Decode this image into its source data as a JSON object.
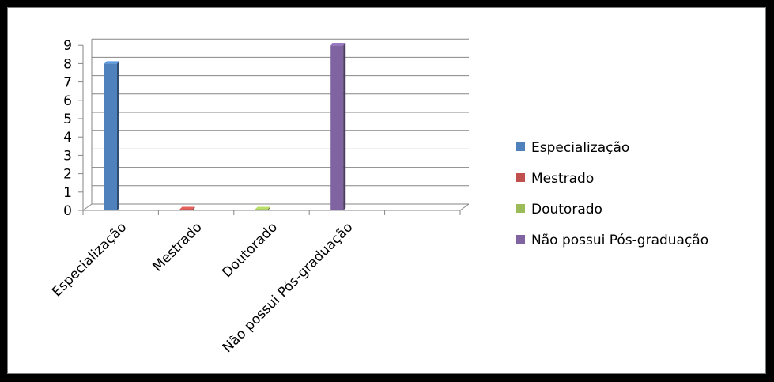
{
  "chart_data": {
    "type": "bar",
    "categories": [
      "Especialização",
      "Mestrado",
      "Doutorado",
      "Não possui Pós-graduação"
    ],
    "series": [
      {
        "name": "Especialização",
        "values": [
          8,
          0,
          0,
          0
        ],
        "color": "#4f81bd"
      },
      {
        "name": "Mestrado",
        "values": [
          0,
          0,
          0,
          0
        ],
        "color": "#c0504d"
      },
      {
        "name": "Doutorado",
        "values": [
          0,
          0,
          0,
          0
        ],
        "color": "#9bbb59"
      },
      {
        "name": "Não possui Pós-graduação",
        "values": [
          0,
          0,
          0,
          9
        ],
        "color": "#8064a2"
      }
    ],
    "yticks": [
      "0",
      "1",
      "2",
      "3",
      "4",
      "5",
      "6",
      "7",
      "8",
      "9"
    ],
    "ylim": [
      0,
      9
    ],
    "grid": true,
    "three_d": true,
    "legend_position": "right"
  }
}
